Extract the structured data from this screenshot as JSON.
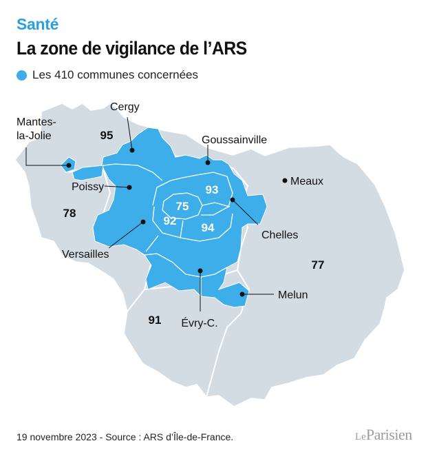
{
  "header": {
    "kicker": "Santé",
    "title": "La zone de vigilance de l’ARS"
  },
  "legend": {
    "label": "Les 410 communes concernées",
    "color": "#3daee9"
  },
  "map": {
    "base_color": "#d3dbe3",
    "zone_color": "#3daee9",
    "border_color": "#ffffff",
    "departments": {
      "d95": "95",
      "d78": "78",
      "d91": "91",
      "d77": "77",
      "d75": "75",
      "d92": "92",
      "d93": "93",
      "d94": "94"
    },
    "cities": {
      "cergy": "Cergy",
      "mantes_line1": "Mantes-",
      "mantes_line2": "la-Jolie",
      "goussainville": "Goussainville",
      "poissy": "Poissy",
      "meaux": "Meaux",
      "chelles": "Chelles",
      "versailles": "Versailles",
      "melun": "Melun",
      "evry": "Évry-C."
    }
  },
  "footer": {
    "source": "19 novembre 2023 - Source : ARS d’Île-de-France.",
    "logo_le": "Le",
    "logo_name": "Parisien"
  }
}
